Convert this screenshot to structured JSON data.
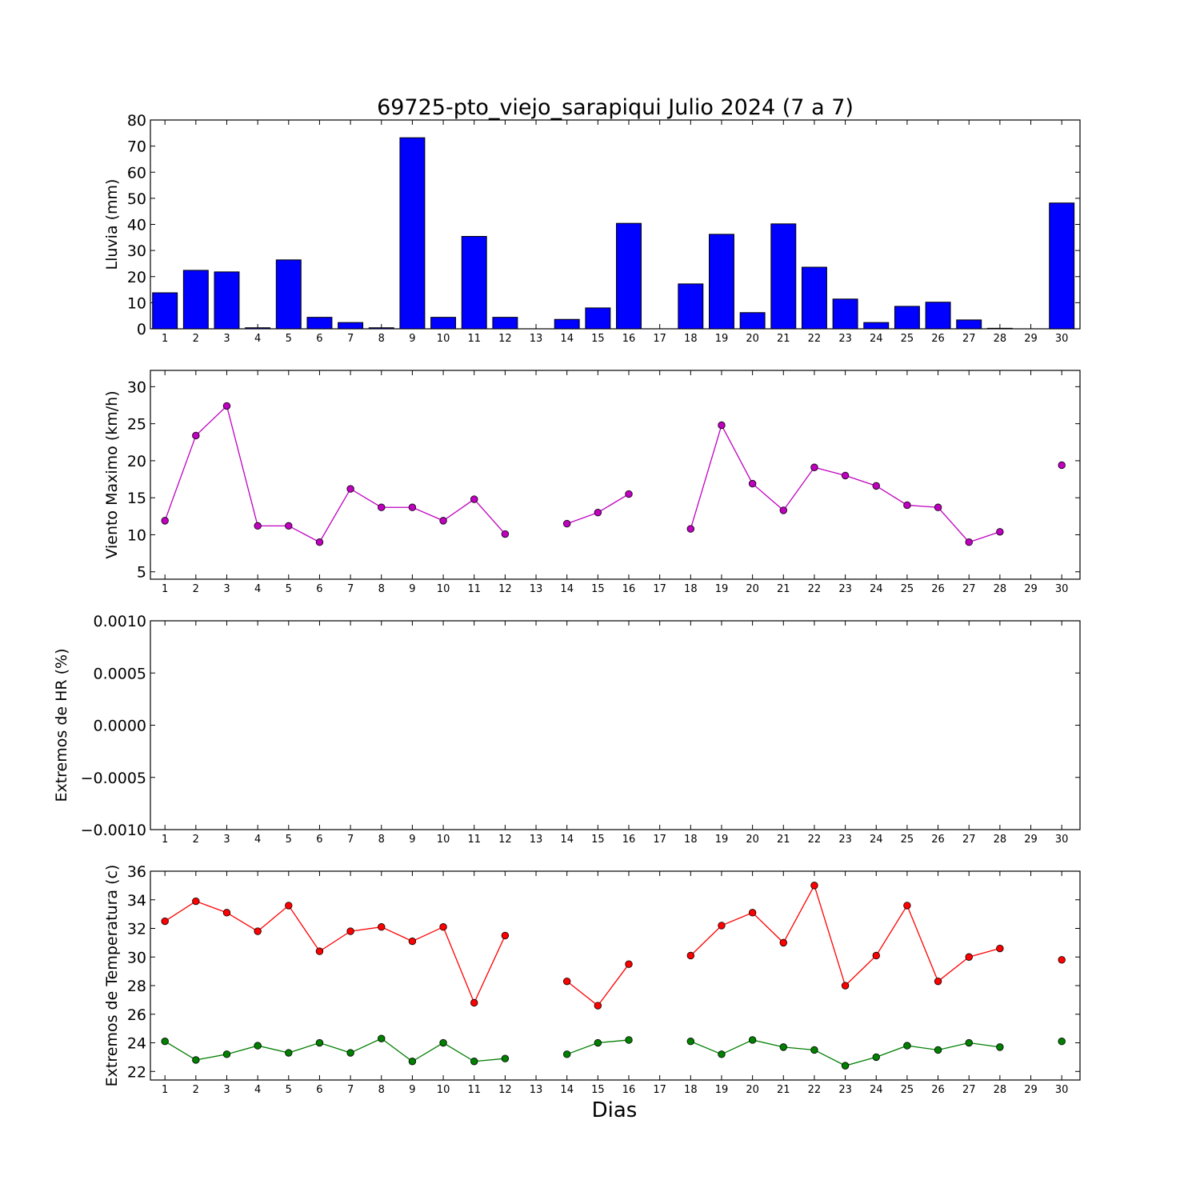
{
  "title": "69725-pto_viejo_sarapiqui Julio 2024  (7 a 7)",
  "xlabel": "Dias",
  "colors": {
    "rain": "#0000ff",
    "wind": "#bf00bf",
    "tmax": "#ff0000",
    "tmin": "#007f00"
  },
  "chart_data": [
    {
      "id": "rain",
      "type": "bar",
      "ylabel": "Lluvia (mm)",
      "ylim": [
        0,
        80
      ],
      "yticks": [
        0,
        10,
        20,
        30,
        40,
        50,
        60,
        70,
        80
      ],
      "ytick_labels": [
        "0",
        "10",
        "20",
        "30",
        "40",
        "50",
        "60",
        "70",
        "80"
      ],
      "categories": [
        "1",
        "2",
        "3",
        "4",
        "5",
        "6",
        "7",
        "8",
        "9",
        "10",
        "11",
        "12",
        "13",
        "14",
        "15",
        "16",
        "17",
        "18",
        "19",
        "20",
        "21",
        "22",
        "23",
        "24",
        "25",
        "26",
        "27",
        "28",
        "29",
        "30"
      ],
      "values": [
        13.8,
        22.4,
        21.8,
        0.4,
        26.4,
        4.4,
        2.4,
        0.4,
        73.2,
        4.4,
        35.4,
        4.4,
        0,
        3.6,
        8.0,
        40.4,
        0,
        17.2,
        36.2,
        6.2,
        40.2,
        23.6,
        11.4,
        2.4,
        8.6,
        10.2,
        3.4,
        0.2,
        0,
        48.2
      ]
    },
    {
      "id": "wind",
      "type": "line",
      "ylabel": "Viento Maximo (km/h)",
      "ylim": [
        4,
        32.2
      ],
      "yticks": [
        5,
        10,
        15,
        20,
        25,
        30
      ],
      "ytick_labels": [
        "5",
        "10",
        "15",
        "20",
        "25",
        "30"
      ],
      "x": [
        1,
        2,
        3,
        4,
        5,
        6,
        7,
        8,
        9,
        10,
        11,
        12,
        13,
        14,
        15,
        16,
        17,
        18,
        19,
        20,
        21,
        22,
        23,
        24,
        25,
        26,
        27,
        28,
        29,
        30
      ],
      "series": [
        {
          "color": "#bf00bf",
          "values": [
            11.9,
            23.4,
            27.4,
            11.2,
            11.2,
            9.0,
            16.2,
            13.7,
            13.7,
            11.9,
            14.8,
            10.1,
            null,
            11.5,
            13.0,
            15.5,
            null,
            10.8,
            24.8,
            16.9,
            13.3,
            19.1,
            18.0,
            16.6,
            14.0,
            13.7,
            9.0,
            10.4,
            null,
            19.4
          ]
        }
      ]
    },
    {
      "id": "hr",
      "type": "line",
      "ylabel": "Extremos de HR (%)",
      "ylim": [
        -0.001,
        0.001
      ],
      "yticks": [
        -0.001,
        -0.0005,
        0,
        0.0005,
        0.001
      ],
      "ytick_labels": [
        "−0.0010",
        "−0.0005",
        "0.0000",
        "0.0005",
        "0.0010"
      ],
      "x": [
        1,
        2,
        3,
        4,
        5,
        6,
        7,
        8,
        9,
        10,
        11,
        12,
        13,
        14,
        15,
        16,
        17,
        18,
        19,
        20,
        21,
        22,
        23,
        24,
        25,
        26,
        27,
        28,
        29,
        30
      ],
      "series": []
    },
    {
      "id": "temp",
      "type": "line",
      "ylabel": "Extremos de Temperatura (c)",
      "ylim": [
        21.4,
        36
      ],
      "yticks": [
        22,
        24,
        26,
        28,
        30,
        32,
        34,
        36
      ],
      "ytick_labels": [
        "22",
        "24",
        "26",
        "28",
        "30",
        "32",
        "34",
        "36"
      ],
      "x": [
        1,
        2,
        3,
        4,
        5,
        6,
        7,
        8,
        9,
        10,
        11,
        12,
        13,
        14,
        15,
        16,
        17,
        18,
        19,
        20,
        21,
        22,
        23,
        24,
        25,
        26,
        27,
        28,
        29,
        30
      ],
      "series": [
        {
          "color": "#ff0000",
          "values": [
            32.5,
            33.9,
            33.1,
            31.8,
            33.6,
            30.4,
            31.8,
            32.1,
            31.1,
            32.1,
            26.8,
            31.5,
            null,
            28.3,
            26.6,
            29.5,
            null,
            30.1,
            32.2,
            33.1,
            31.0,
            35.0,
            28.0,
            30.1,
            33.6,
            28.3,
            30.0,
            30.6,
            null,
            29.8
          ]
        },
        {
          "color": "#007f00",
          "values": [
            24.1,
            22.8,
            23.2,
            23.8,
            23.3,
            24.0,
            23.3,
            24.3,
            22.7,
            24.0,
            22.7,
            22.9,
            null,
            23.2,
            24.0,
            24.2,
            null,
            24.1,
            23.2,
            24.2,
            23.7,
            23.5,
            22.4,
            23.0,
            23.8,
            23.5,
            24.0,
            23.7,
            null,
            24.1
          ]
        }
      ]
    }
  ]
}
